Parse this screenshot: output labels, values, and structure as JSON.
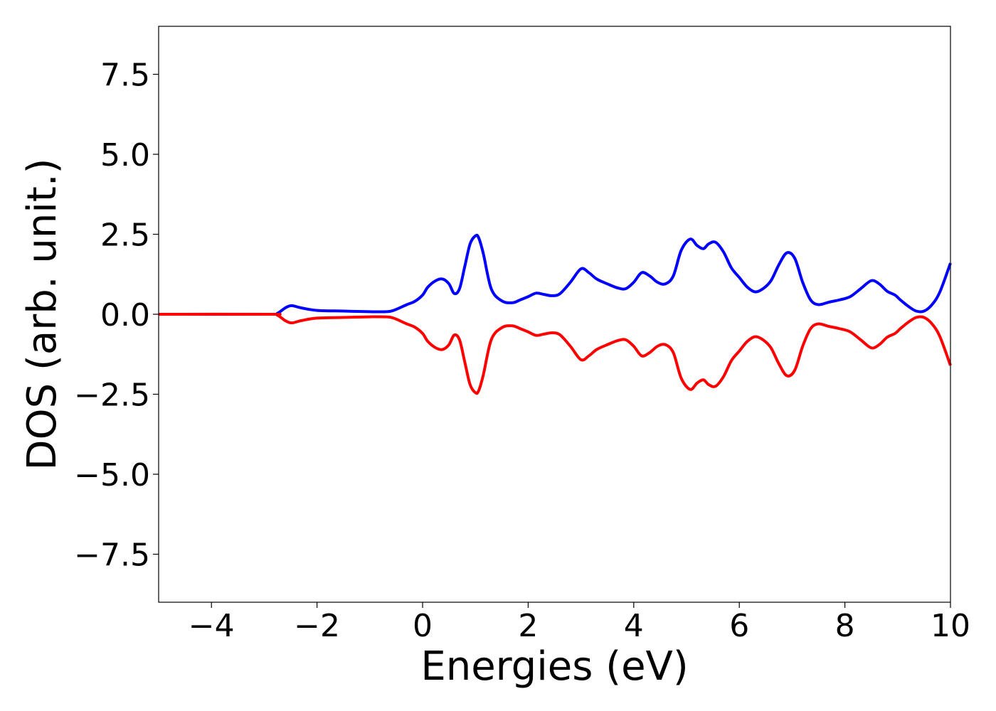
{
  "chart_data": {
    "type": "line",
    "title": "",
    "xlabel": "Energies (eV)",
    "ylabel": "DOS (arb. unit.)",
    "xlim": [
      -5,
      10
    ],
    "ylim": [
      -9,
      9
    ],
    "xticks": [
      -4,
      -2,
      0,
      2,
      4,
      6,
      8,
      10
    ],
    "xtick_labels": [
      "−4",
      "−2",
      "0",
      "2",
      "4",
      "6",
      "8",
      "10"
    ],
    "yticks": [
      7.5,
      5.0,
      2.5,
      0.0,
      -2.5,
      -5.0,
      -7.5
    ],
    "ytick_labels": [
      "7.5",
      "5.0",
      "2.5",
      "0.0",
      "−2.5",
      "−5.0",
      "−7.5"
    ],
    "grid": false,
    "legend": "none",
    "series": [
      {
        "color": "#0000ff",
        "x": [
          -5.0,
          -2.9,
          -2.75,
          -2.6,
          -2.48,
          -2.3,
          -2.0,
          -1.5,
          -1.0,
          -0.7,
          -0.55,
          -0.3,
          -0.15,
          0.0,
          0.1,
          0.25,
          0.38,
          0.5,
          0.6,
          0.7,
          0.8,
          0.9,
          1.0,
          1.06,
          1.15,
          1.3,
          1.5,
          1.7,
          1.85,
          2.0,
          2.15,
          2.3,
          2.45,
          2.6,
          2.8,
          3.0,
          3.15,
          3.3,
          3.5,
          3.7,
          3.85,
          4.0,
          4.15,
          4.3,
          4.45,
          4.6,
          4.75,
          4.9,
          5.07,
          5.2,
          5.32,
          5.42,
          5.55,
          5.7,
          5.85,
          6.0,
          6.15,
          6.3,
          6.45,
          6.6,
          6.75,
          6.9,
          7.05,
          7.2,
          7.35,
          7.5,
          7.7,
          7.9,
          8.1,
          8.3,
          8.5,
          8.65,
          8.8,
          8.95,
          9.05,
          9.2,
          9.35,
          9.5,
          9.65,
          9.8,
          10.0
        ],
        "y": [
          0.0,
          0.0,
          0.03,
          0.2,
          0.27,
          0.2,
          0.12,
          0.1,
          0.08,
          0.08,
          0.12,
          0.3,
          0.4,
          0.6,
          0.85,
          1.05,
          1.1,
          0.95,
          0.65,
          0.8,
          1.5,
          2.2,
          2.45,
          2.4,
          1.9,
          0.8,
          0.42,
          0.36,
          0.45,
          0.55,
          0.66,
          0.62,
          0.58,
          0.64,
          1.0,
          1.42,
          1.3,
          1.1,
          0.95,
          0.82,
          0.8,
          1.0,
          1.3,
          1.2,
          1.0,
          0.95,
          1.2,
          2.0,
          2.35,
          2.15,
          2.05,
          2.2,
          2.25,
          1.95,
          1.45,
          1.15,
          0.85,
          0.7,
          0.8,
          1.05,
          1.55,
          1.92,
          1.75,
          1.0,
          0.45,
          0.3,
          0.38,
          0.45,
          0.55,
          0.8,
          1.05,
          0.95,
          0.72,
          0.6,
          0.45,
          0.25,
          0.1,
          0.1,
          0.3,
          0.7,
          1.6
        ]
      },
      {
        "color": "#ff0000",
        "x": [
          -5.0,
          -2.9,
          -2.75,
          -2.6,
          -2.48,
          -2.3,
          -2.0,
          -1.5,
          -1.0,
          -0.7,
          -0.55,
          -0.3,
          -0.15,
          0.0,
          0.1,
          0.25,
          0.38,
          0.5,
          0.6,
          0.7,
          0.8,
          0.9,
          1.0,
          1.06,
          1.15,
          1.3,
          1.5,
          1.7,
          1.85,
          2.0,
          2.15,
          2.3,
          2.45,
          2.6,
          2.8,
          3.0,
          3.15,
          3.3,
          3.5,
          3.7,
          3.85,
          4.0,
          4.15,
          4.3,
          4.45,
          4.6,
          4.75,
          4.9,
          5.07,
          5.2,
          5.32,
          5.42,
          5.55,
          5.7,
          5.85,
          6.0,
          6.15,
          6.3,
          6.45,
          6.6,
          6.75,
          6.9,
          7.05,
          7.2,
          7.35,
          7.5,
          7.7,
          7.9,
          8.1,
          8.3,
          8.5,
          8.65,
          8.8,
          8.95,
          9.05,
          9.2,
          9.35,
          9.5,
          9.65,
          9.8,
          10.0
        ],
        "y": [
          0.0,
          0.0,
          -0.03,
          -0.2,
          -0.27,
          -0.2,
          -0.12,
          -0.1,
          -0.08,
          -0.08,
          -0.12,
          -0.3,
          -0.4,
          -0.6,
          -0.85,
          -1.05,
          -1.1,
          -0.95,
          -0.65,
          -0.8,
          -1.5,
          -2.2,
          -2.45,
          -2.4,
          -1.9,
          -0.8,
          -0.42,
          -0.36,
          -0.45,
          -0.55,
          -0.66,
          -0.62,
          -0.58,
          -0.64,
          -1.0,
          -1.42,
          -1.3,
          -1.1,
          -0.95,
          -0.82,
          -0.8,
          -1.0,
          -1.3,
          -1.2,
          -1.0,
          -0.95,
          -1.2,
          -2.0,
          -2.35,
          -2.15,
          -2.05,
          -2.2,
          -2.25,
          -1.95,
          -1.45,
          -1.15,
          -0.85,
          -0.7,
          -0.8,
          -1.05,
          -1.55,
          -1.92,
          -1.75,
          -1.0,
          -0.45,
          -0.3,
          -0.38,
          -0.45,
          -0.55,
          -0.8,
          -1.05,
          -0.95,
          -0.72,
          -0.6,
          -0.45,
          -0.25,
          -0.1,
          -0.1,
          -0.3,
          -0.7,
          -1.6
        ]
      }
    ]
  }
}
